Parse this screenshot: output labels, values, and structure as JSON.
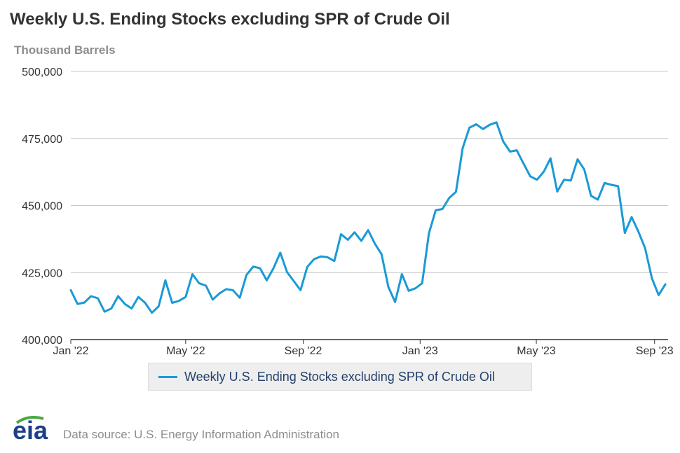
{
  "title": "Weekly U.S. Ending Stocks excluding SPR of Crude Oil",
  "subtitle": "Thousand Barrels",
  "source_text": "Data source: U.S. Energy Information Administration",
  "logo_text": "eia",
  "colors": {
    "series": "#1a9ad6",
    "grid": "#c8c8c8",
    "axis": "#333333",
    "text": "#333333",
    "logo_green": "#4aa845"
  },
  "chart_data": {
    "type": "line",
    "title": "Weekly U.S. Ending Stocks excluding SPR of Crude Oil",
    "ylabel": "Thousand Barrels",
    "ylim": [
      400000,
      500000
    ],
    "yticks": [
      400000,
      425000,
      450000,
      475000,
      500000
    ],
    "ytick_labels": [
      "400,000",
      "425,000",
      "450,000",
      "475,000",
      "500,000"
    ],
    "xticks": [
      {
        "label": "Jan '22",
        "week": 0
      },
      {
        "label": "May '22",
        "week": 17
      },
      {
        "label": "Sep '22",
        "week": 34.4
      },
      {
        "label": "Jan '23",
        "week": 51.7
      },
      {
        "label": "May '23",
        "week": 68.9
      },
      {
        "label": "Sep '23",
        "week": 86.4
      }
    ],
    "x_range": [
      0,
      88.4
    ],
    "legend": "Weekly U.S. Ending Stocks excluding SPR of Crude Oil",
    "series": [
      {
        "name": "Weekly U.S. Ending Stocks excluding SPR of Crude Oil",
        "values": [
          418400,
          413300,
          413800,
          416200,
          415400,
          410400,
          411600,
          416200,
          413300,
          411600,
          415900,
          413700,
          410000,
          412400,
          422100,
          413700,
          414400,
          415900,
          424400,
          421000,
          420100,
          414900,
          417200,
          418800,
          418400,
          415600,
          424100,
          427200,
          426600,
          422100,
          426600,
          432400,
          425200,
          421800,
          418400,
          427100,
          430000,
          431000,
          430700,
          429300,
          439300,
          437200,
          440000,
          436800,
          440800,
          435800,
          431800,
          419600,
          414000,
          424400,
          418200,
          419100,
          421000,
          439600,
          448200,
          448700,
          452800,
          455100,
          471400,
          479000,
          480300,
          478500,
          480100,
          481000,
          473900,
          470100,
          470600,
          465700,
          460900,
          459600,
          462600,
          467600,
          455200,
          459600,
          459300,
          467200,
          463400,
          453600,
          452200,
          458400,
          457700,
          457200,
          439800,
          445700,
          440300,
          434100,
          422900,
          416600,
          420600
        ]
      }
    ]
  }
}
